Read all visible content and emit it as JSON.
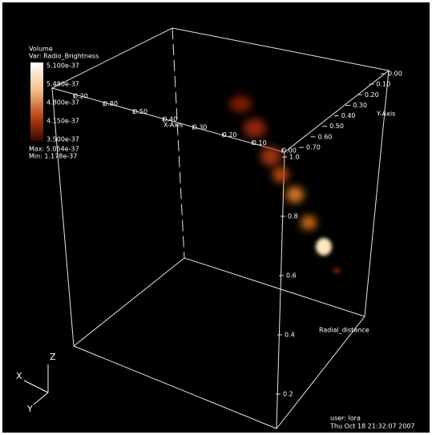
{
  "legend": {
    "title": "Volume",
    "variable": "Var: Radio_Brightness",
    "labels": [
      "5.100e-37",
      "5.480e-37",
      "4.800e-37",
      "4.150e-37",
      "3.500e-37"
    ],
    "max": "Max: 5.054e-37",
    "min": "Min: 1.178e-37"
  },
  "axes": {
    "x_title": "X-Axis",
    "y_title": "Y-Axis",
    "z_title": "Radial_distance",
    "x_ticks": [
      "0.20",
      "0.80",
      "0.50",
      "0.40",
      "0.30",
      "0.20",
      "0.10",
      "0.00"
    ],
    "y_ticks": [
      "0.00",
      "0.10",
      "0.20",
      "0.30",
      "0.40",
      "0.50",
      "0.60",
      "0.70"
    ],
    "z_ticks": [
      "1.0",
      "0.8",
      "0.6",
      "0.4",
      "0.2"
    ]
  },
  "triad": {
    "x": "X",
    "y": "Y",
    "z": "Z"
  },
  "footer": {
    "user": "user: lora",
    "date": "Thu Oct 18 21:32:07 2007"
  }
}
